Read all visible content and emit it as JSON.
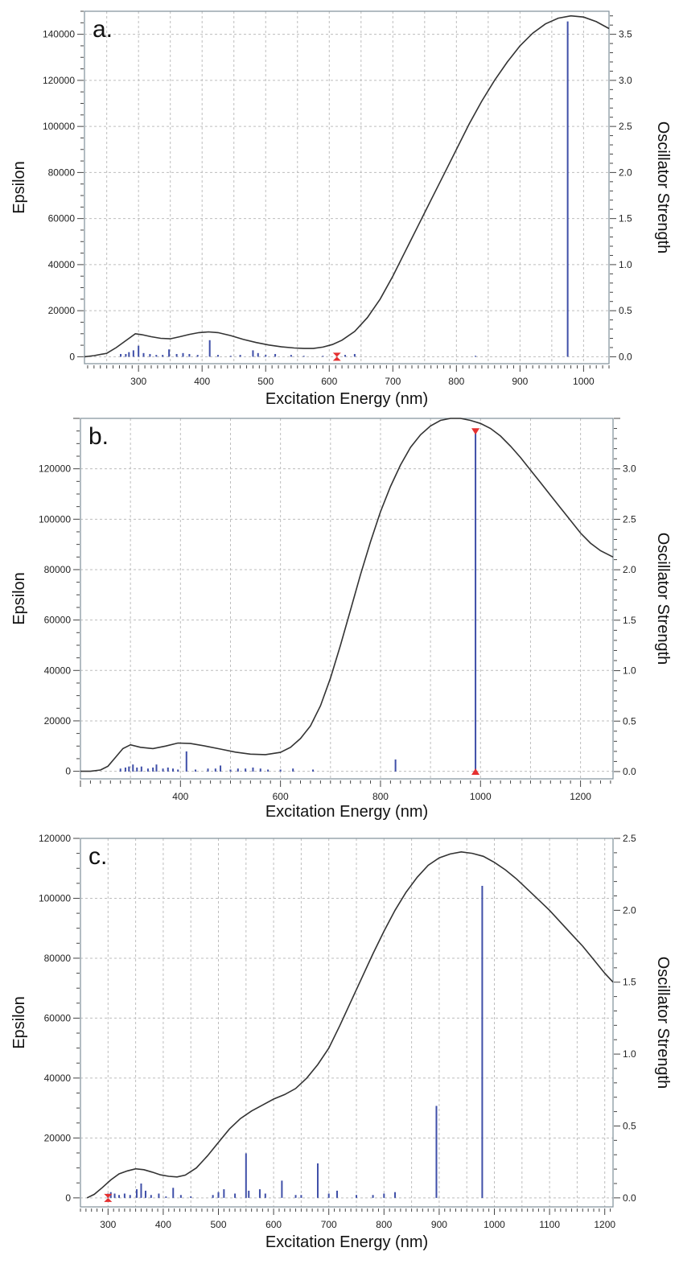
{
  "colors": {
    "curve": "#333333",
    "bars": "#3f4fa8",
    "marker": "#e53030",
    "grid": "#bdbdbd"
  },
  "chart_data": [
    {
      "type": "line",
      "panel_label": "a.",
      "xlabel": "Excitation Energy (nm)",
      "ylabel": "Epsilon",
      "y2label": "Oscillator Strength",
      "xlim": [
        215,
        1040
      ],
      "ylim": [
        -3000,
        150000
      ],
      "y2lim": [
        -0.075,
        3.75
      ],
      "xticks": [
        300,
        400,
        500,
        600,
        700,
        800,
        900,
        1000
      ],
      "yticks": [
        0,
        20000,
        40000,
        60000,
        80000,
        100000,
        120000,
        140000
      ],
      "y2ticks": [
        0.0,
        0.5,
        1.0,
        1.5,
        2.0,
        2.5,
        3.0,
        3.5
      ],
      "xtick_labels": [
        "300",
        "400",
        "500",
        "600",
        "700",
        "800",
        "900",
        "1000"
      ],
      "ytick_labels": [
        "0",
        "20000",
        "40000",
        "60000",
        "80000",
        "100000",
        "120000",
        "140000"
      ],
      "y2tick_labels": [
        "0.0",
        "0.5",
        "1.0",
        "1.5",
        "2.0",
        "2.5",
        "3.0",
        "3.5"
      ],
      "spectrum": {
        "x": [
          215,
          230,
          250,
          265,
          280,
          295,
          305,
          320,
          335,
          350,
          365,
          380,
          395,
          410,
          425,
          445,
          465,
          485,
          505,
          525,
          545,
          560,
          575,
          590,
          605,
          620,
          640,
          660,
          680,
          700,
          720,
          740,
          760,
          780,
          800,
          820,
          840,
          860,
          880,
          900,
          920,
          940,
          960,
          980,
          1000,
          1020,
          1040
        ],
        "y": [
          0,
          500,
          1500,
          4000,
          7000,
          10000,
          9600,
          8700,
          8000,
          7800,
          8700,
          9700,
          10500,
          10800,
          10500,
          9200,
          7500,
          6200,
          5100,
          4300,
          3800,
          3600,
          3600,
          4200,
          5300,
          7200,
          11000,
          17000,
          25000,
          35000,
          46000,
          57000,
          68000,
          79000,
          90000,
          101000,
          111000,
          120000,
          128000,
          135000,
          140500,
          144500,
          147000,
          148000,
          147500,
          145500,
          142500
        ]
      },
      "sticks": {
        "x": [
          272,
          280,
          285,
          292,
          300,
          308,
          318,
          328,
          338,
          348,
          360,
          370,
          380,
          393,
          412,
          425,
          445,
          460,
          480,
          488,
          500,
          515,
          540,
          560,
          590,
          625,
          640,
          830,
          975
        ],
        "f": [
          0.03,
          0.03,
          0.05,
          0.07,
          0.12,
          0.04,
          0.03,
          0.02,
          0.02,
          0.08,
          0.03,
          0.04,
          0.03,
          0.02,
          0.18,
          0.02,
          0.01,
          0.02,
          0.07,
          0.04,
          0.02,
          0.03,
          0.02,
          0.01,
          0.01,
          0.02,
          0.03,
          0.01,
          3.64
        ]
      },
      "markers": [
        {
          "x": 612,
          "f": 0.0,
          "shape": "bowtie"
        }
      ]
    },
    {
      "type": "line",
      "panel_label": "b.",
      "xlabel": "Excitation Energy (nm)",
      "ylabel": "Epsilon",
      "y2label": "Oscillator Strength",
      "xlim": [
        200,
        1265
      ],
      "ylim": [
        -3000,
        140000
      ],
      "y2lim": [
        -0.072,
        3.5
      ],
      "xticks": [
        400,
        600,
        800,
        1000,
        1200
      ],
      "yticks": [
        0,
        20000,
        40000,
        60000,
        80000,
        100000,
        120000
      ],
      "y2ticks": [
        0.0,
        0.5,
        1.0,
        1.5,
        2.0,
        2.5,
        3.0
      ],
      "xtick_labels": [
        "400",
        "600",
        "800",
        "1000",
        "1200"
      ],
      "ytick_labels": [
        "0",
        "20000",
        "40000",
        "60000",
        "80000",
        "100000",
        "120000"
      ],
      "y2tick_labels": [
        "0.0",
        "0.5",
        "1.0",
        "1.5",
        "2.0",
        "2.5",
        "3.0"
      ],
      "spectrum": {
        "x": [
          200,
          220,
          240,
          255,
          270,
          285,
          300,
          320,
          345,
          370,
          395,
          420,
          450,
          480,
          510,
          540,
          570,
          600,
          620,
          640,
          660,
          680,
          700,
          720,
          740,
          760,
          780,
          800,
          820,
          840,
          860,
          880,
          900,
          920,
          940,
          960,
          980,
          1000,
          1020,
          1040,
          1060,
          1080,
          1100,
          1120,
          1140,
          1160,
          1180,
          1200,
          1220,
          1240,
          1265
        ],
        "y": [
          0,
          0,
          500,
          2000,
          5500,
          9000,
          10500,
          9500,
          9000,
          10000,
          11200,
          11000,
          10000,
          8800,
          7600,
          6800,
          6600,
          7500,
          9500,
          13000,
          18000,
          26000,
          37000,
          50000,
          64000,
          78000,
          91000,
          103000,
          113000,
          121500,
          128500,
          133500,
          137000,
          139200,
          140000,
          140000,
          139200,
          138000,
          136000,
          133000,
          129000,
          124500,
          119500,
          114500,
          109500,
          104500,
          99500,
          94500,
          90500,
          87500,
          85000
        ]
      },
      "sticks": {
        "x": [
          280,
          290,
          297,
          305,
          313,
          322,
          335,
          345,
          352,
          365,
          375,
          385,
          395,
          412,
          430,
          455,
          470,
          480,
          500,
          515,
          530,
          545,
          560,
          575,
          600,
          625,
          665,
          830,
          990
        ],
        "f": [
          0.03,
          0.04,
          0.05,
          0.07,
          0.04,
          0.05,
          0.03,
          0.04,
          0.07,
          0.03,
          0.04,
          0.03,
          0.02,
          0.2,
          0.02,
          0.03,
          0.03,
          0.06,
          0.02,
          0.03,
          0.03,
          0.04,
          0.03,
          0.02,
          0.02,
          0.03,
          0.02,
          0.12,
          3.37
        ]
      },
      "markers": [
        {
          "x": 990,
          "f": 3.37,
          "shape": "triangle-down"
        },
        {
          "x": 990,
          "f": 0.0,
          "shape": "triangle-up"
        }
      ]
    },
    {
      "type": "line",
      "panel_label": "c.",
      "xlabel": "Excitation Energy (nm)",
      "ylabel": "Epsilon",
      "y2label": "Oscillator Strength",
      "xlim": [
        250,
        1215
      ],
      "ylim": [
        -3000,
        120000
      ],
      "y2lim": [
        -0.0625,
        2.5
      ],
      "xticks": [
        300,
        400,
        500,
        600,
        700,
        800,
        900,
        1000,
        1100,
        1200
      ],
      "yticks": [
        0,
        20000,
        40000,
        60000,
        80000,
        100000,
        120000
      ],
      "y2ticks": [
        0.0,
        0.5,
        1.0,
        1.5,
        2.0,
        2.5
      ],
      "xtick_labels": [
        "300",
        "400",
        "500",
        "600",
        "700",
        "800",
        "900",
        "1000",
        "1100",
        "1200"
      ],
      "ytick_labels": [
        "0",
        "20000",
        "40000",
        "60000",
        "80000",
        "100000",
        "120000"
      ],
      "y2tick_labels": [
        "0.0",
        "0.5",
        "1.0",
        "1.5",
        "2.0",
        "2.5"
      ],
      "spectrum": {
        "x": [
          262,
          275,
          290,
          305,
          320,
          335,
          350,
          365,
          380,
          395,
          410,
          425,
          440,
          460,
          480,
          500,
          520,
          540,
          560,
          580,
          600,
          620,
          640,
          660,
          680,
          700,
          720,
          740,
          760,
          780,
          800,
          820,
          840,
          860,
          880,
          900,
          920,
          940,
          960,
          980,
          1000,
          1020,
          1040,
          1060,
          1080,
          1100,
          1120,
          1140,
          1160,
          1180,
          1200,
          1215
        ],
        "y": [
          0,
          1200,
          3500,
          6000,
          8000,
          9000,
          9700,
          9400,
          8600,
          7700,
          7200,
          7000,
          7600,
          10000,
          14000,
          18500,
          23000,
          26500,
          29000,
          31000,
          33000,
          34500,
          36500,
          40000,
          44500,
          50000,
          57500,
          65500,
          73500,
          81500,
          89000,
          96000,
          102000,
          107000,
          111000,
          113500,
          114800,
          115500,
          115000,
          114000,
          112000,
          109500,
          106500,
          103000,
          99500,
          96000,
          92000,
          88000,
          84000,
          79500,
          75000,
          72000
        ]
      },
      "sticks": {
        "x": [
          300,
          305,
          312,
          320,
          330,
          340,
          352,
          360,
          368,
          378,
          392,
          405,
          418,
          432,
          450,
          490,
          500,
          510,
          530,
          550,
          555,
          575,
          585,
          615,
          640,
          650,
          680,
          700,
          715,
          750,
          780,
          800,
          820,
          895,
          978
        ],
        "f": [
          0.03,
          0.04,
          0.03,
          0.02,
          0.03,
          0.02,
          0.06,
          0.1,
          0.05,
          0.02,
          0.03,
          0.01,
          0.07,
          0.02,
          0.01,
          0.02,
          0.04,
          0.06,
          0.03,
          0.31,
          0.05,
          0.06,
          0.03,
          0.12,
          0.02,
          0.02,
          0.24,
          0.03,
          0.05,
          0.02,
          0.02,
          0.03,
          0.04,
          0.64,
          2.17
        ]
      },
      "markers": [
        {
          "x": 300,
          "f": 0.0,
          "shape": "bowtie"
        }
      ]
    }
  ]
}
